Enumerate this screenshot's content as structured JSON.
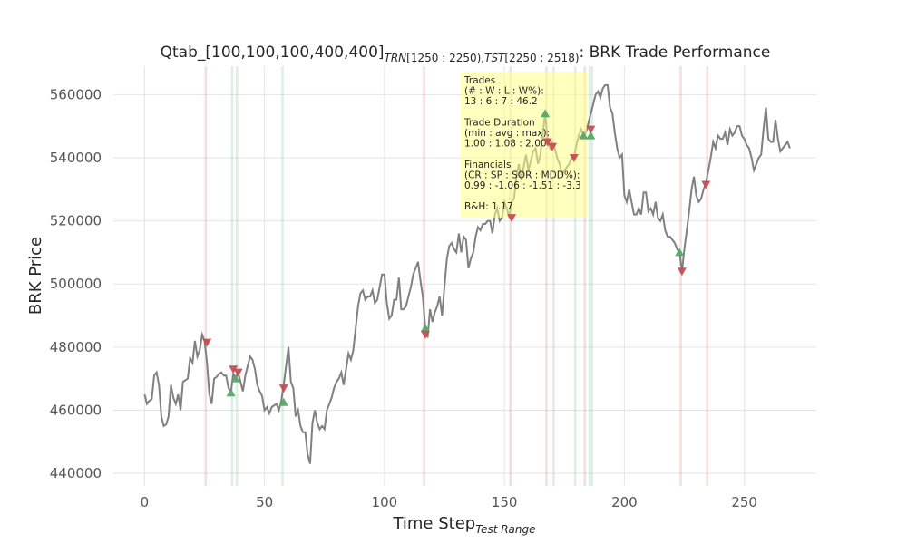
{
  "chart_data": {
    "type": "line",
    "title": {
      "prefix": "Qtab_[100,100,100,400,400]",
      "trn_label": "TRN",
      "trn_range": "[1250 : 2250),",
      "tst_label": "TST",
      "tst_range": "[2250 : 2518)",
      "suffix": ": BRK Trade Performance"
    },
    "xlabel": "Time Step",
    "xlabel_sub": "Test Range",
    "ylabel": "BRK Price",
    "xlim": [
      -13,
      280
    ],
    "ylim": [
      436000,
      569000
    ],
    "xticks": [
      0,
      50,
      100,
      150,
      200,
      250
    ],
    "yticks": [
      440000,
      460000,
      480000,
      500000,
      520000,
      540000,
      560000
    ],
    "grid": true,
    "colors": {
      "price": "#808080",
      "buy": "#55a868",
      "sell": "#c44e52",
      "buy_span": "#55a868",
      "sell_span": "#c44e52",
      "annotation_bg": "#ffff88",
      "grid": "#e5e5e5"
    },
    "price_keypoints": [
      [
        0,
        465000
      ],
      [
        1,
        462000
      ],
      [
        2,
        463000
      ],
      [
        3,
        463500
      ],
      [
        4,
        471000
      ],
      [
        5,
        472000
      ],
      [
        6,
        468000
      ],
      [
        7,
        458000
      ],
      [
        8,
        455000
      ],
      [
        9,
        455500
      ],
      [
        10,
        458000
      ],
      [
        11,
        468000
      ],
      [
        12,
        464000
      ],
      [
        13,
        462000
      ],
      [
        14,
        465000
      ],
      [
        15,
        460000
      ],
      [
        16,
        469000
      ],
      [
        17,
        469500
      ],
      [
        18,
        470000
      ],
      [
        19,
        476500
      ],
      [
        20,
        475000
      ],
      [
        21,
        482000
      ],
      [
        22,
        477000
      ],
      [
        23,
        479000
      ],
      [
        24,
        484000
      ],
      [
        25,
        482000
      ],
      [
        26,
        475000
      ],
      [
        27,
        465000
      ],
      [
        28,
        462000
      ],
      [
        29,
        470000
      ],
      [
        30,
        470500
      ],
      [
        31,
        471500
      ],
      [
        32,
        472000
      ],
      [
        33,
        471000
      ],
      [
        34,
        471000
      ],
      [
        35,
        467000
      ],
      [
        36,
        466000
      ],
      [
        37,
        471500
      ],
      [
        38,
        470000
      ],
      [
        39,
        472000
      ],
      [
        40,
        469000
      ],
      [
        41,
        466000
      ],
      [
        42,
        471000
      ],
      [
        43,
        474000
      ],
      [
        44,
        477000
      ],
      [
        45,
        476000
      ],
      [
        46,
        473000
      ],
      [
        47,
        468000
      ],
      [
        48,
        466000
      ],
      [
        49,
        464500
      ],
      [
        50,
        460000
      ],
      [
        51,
        461000
      ],
      [
        52,
        459000
      ],
      [
        53,
        461000
      ],
      [
        54,
        461500
      ],
      [
        55,
        462000
      ],
      [
        56,
        460000
      ],
      [
        57,
        463000
      ],
      [
        58,
        468000
      ],
      [
        59,
        474000
      ],
      [
        60,
        480000
      ],
      [
        61,
        469000
      ],
      [
        62,
        467000
      ],
      [
        63,
        458000
      ],
      [
        64,
        460000
      ],
      [
        65,
        455000
      ],
      [
        66,
        453000
      ],
      [
        67,
        453000
      ],
      [
        68,
        446000
      ],
      [
        69,
        443000
      ],
      [
        70,
        456000
      ],
      [
        71,
        460000
      ],
      [
        72,
        456000
      ],
      [
        73,
        454000
      ],
      [
        74,
        455000
      ],
      [
        75,
        454000
      ],
      [
        76,
        460000
      ],
      [
        77,
        462000
      ],
      [
        78,
        464000
      ],
      [
        79,
        467000
      ],
      [
        80,
        469000
      ],
      [
        81,
        470000
      ],
      [
        82,
        472000
      ],
      [
        83,
        468000
      ],
      [
        84,
        473000
      ],
      [
        85,
        478000
      ],
      [
        86,
        476000
      ],
      [
        87,
        479000
      ],
      [
        88,
        486000
      ],
      [
        89,
        493000
      ],
      [
        90,
        497000
      ],
      [
        91,
        498000
      ],
      [
        92,
        495000
      ],
      [
        93,
        496000
      ],
      [
        94,
        496000
      ],
      [
        95,
        498000
      ],
      [
        96,
        494000
      ],
      [
        97,
        495000
      ],
      [
        98,
        499000
      ],
      [
        99,
        503000
      ],
      [
        100,
        503000
      ],
      [
        101,
        494000
      ],
      [
        102,
        489000
      ],
      [
        103,
        490000
      ],
      [
        104,
        495000
      ],
      [
        105,
        495000
      ],
      [
        106,
        502000
      ],
      [
        107,
        492000
      ],
      [
        108,
        492000
      ],
      [
        109,
        493000
      ],
      [
        110,
        496000
      ],
      [
        111,
        499000
      ],
      [
        112,
        503000
      ],
      [
        113,
        505000
      ],
      [
        114,
        507000
      ],
      [
        115,
        501000
      ],
      [
        116,
        496000
      ],
      [
        117,
        486000
      ],
      [
        118,
        483000
      ],
      [
        119,
        492000
      ],
      [
        120,
        488000
      ],
      [
        121,
        491000
      ],
      [
        122,
        493000
      ],
      [
        123,
        496000
      ],
      [
        124,
        490000
      ],
      [
        125,
        499000
      ],
      [
        126,
        508000
      ],
      [
        127,
        512000
      ],
      [
        128,
        513000
      ],
      [
        129,
        511000
      ],
      [
        130,
        510000
      ],
      [
        131,
        516000
      ],
      [
        132,
        510000
      ],
      [
        133,
        515000
      ],
      [
        134,
        514000
      ],
      [
        135,
        505000
      ],
      [
        136,
        508000
      ],
      [
        137,
        510000
      ],
      [
        138,
        515000
      ],
      [
        139,
        518000
      ],
      [
        140,
        517000
      ],
      [
        141,
        519000
      ],
      [
        142,
        519000
      ],
      [
        143,
        520000
      ],
      [
        144,
        520000
      ],
      [
        145,
        516000
      ],
      [
        146,
        522000
      ],
      [
        147,
        524000
      ],
      [
        148,
        520000
      ],
      [
        149,
        521000
      ],
      [
        150,
        526000
      ],
      [
        151,
        524000
      ],
      [
        152,
        521000
      ],
      [
        153,
        526000
      ],
      [
        154,
        527000
      ],
      [
        155,
        534000
      ],
      [
        156,
        538000
      ],
      [
        157,
        533000
      ],
      [
        158,
        537000
      ],
      [
        159,
        541000
      ],
      [
        160,
        536000
      ],
      [
        161,
        539000
      ],
      [
        162,
        542000
      ],
      [
        163,
        543000
      ],
      [
        164,
        538000
      ],
      [
        165,
        541000
      ],
      [
        166,
        548000
      ],
      [
        167,
        554000
      ],
      [
        168,
        545000
      ],
      [
        169,
        543000
      ],
      [
        170,
        545000
      ],
      [
        171,
        543000
      ],
      [
        172,
        540000
      ],
      [
        173,
        538000
      ],
      [
        174,
        535000
      ],
      [
        175,
        536000
      ],
      [
        176,
        537000
      ],
      [
        177,
        538000
      ],
      [
        178,
        540000
      ],
      [
        179,
        540000
      ],
      [
        180,
        544000
      ],
      [
        181,
        547000
      ],
      [
        182,
        549000
      ],
      [
        183,
        547000
      ],
      [
        184,
        548000
      ],
      [
        185,
        551000
      ],
      [
        186,
        554000
      ],
      [
        187,
        557000
      ],
      [
        188,
        560000
      ],
      [
        189,
        561000
      ],
      [
        190,
        559000
      ],
      [
        191,
        562000
      ],
      [
        192,
        563000
      ],
      [
        193,
        563000
      ],
      [
        194,
        556000
      ],
      [
        195,
        554000
      ],
      [
        196,
        548000
      ],
      [
        197,
        543000
      ],
      [
        198,
        540000
      ],
      [
        199,
        541000
      ],
      [
        200,
        528000
      ],
      [
        201,
        526000
      ],
      [
        202,
        530000
      ],
      [
        203,
        526000
      ],
      [
        204,
        522000
      ],
      [
        205,
        522000
      ],
      [
        206,
        524000
      ],
      [
        207,
        522000
      ],
      [
        208,
        529000
      ],
      [
        209,
        529000
      ],
      [
        210,
        523000
      ],
      [
        211,
        524000
      ],
      [
        212,
        522000
      ],
      [
        213,
        526000
      ],
      [
        214,
        521000
      ],
      [
        215,
        520000
      ],
      [
        216,
        522000
      ],
      [
        217,
        517000
      ],
      [
        218,
        515000
      ],
      [
        219,
        515000
      ],
      [
        220,
        514000
      ],
      [
        221,
        513000
      ],
      [
        222,
        511000
      ],
      [
        223,
        510000
      ],
      [
        224,
        504000
      ],
      [
        225,
        511000
      ],
      [
        226,
        517000
      ],
      [
        227,
        523000
      ],
      [
        228,
        530000
      ],
      [
        229,
        534000
      ],
      [
        230,
        528000
      ],
      [
        231,
        526000
      ],
      [
        232,
        527000
      ],
      [
        233,
        530000
      ],
      [
        234,
        532000
      ],
      [
        235,
        536000
      ],
      [
        236,
        540000
      ],
      [
        237,
        545000
      ],
      [
        238,
        543000
      ],
      [
        239,
        547000
      ],
      [
        240,
        546000
      ],
      [
        241,
        546000
      ],
      [
        242,
        548000
      ],
      [
        243,
        544000
      ],
      [
        244,
        549000
      ],
      [
        245,
        547000
      ],
      [
        246,
        548000
      ],
      [
        247,
        550000
      ],
      [
        248,
        550000
      ],
      [
        249,
        547000
      ],
      [
        250,
        546000
      ],
      [
        251,
        544000
      ],
      [
        252,
        543000
      ],
      [
        253,
        540000
      ],
      [
        254,
        536000
      ],
      [
        255,
        538000
      ],
      [
        256,
        540000
      ],
      [
        257,
        541000
      ],
      [
        258,
        549000
      ],
      [
        259,
        556000
      ],
      [
        260,
        546000
      ],
      [
        261,
        545000
      ],
      [
        262,
        545000
      ],
      [
        263,
        552000
      ],
      [
        264,
        546000
      ],
      [
        265,
        542000
      ],
      [
        266,
        543000
      ],
      [
        267,
        544000
      ],
      [
        268,
        545000
      ],
      [
        269,
        543000
      ]
    ],
    "buy_markers": [
      [
        36,
        465500
      ],
      [
        38,
        470000
      ],
      [
        58,
        462500
      ],
      [
        117,
        486000
      ],
      [
        167,
        554000
      ],
      [
        183,
        547000
      ],
      [
        186,
        547000
      ],
      [
        223,
        510000
      ]
    ],
    "sell_markers": [
      [
        26,
        481500
      ],
      [
        37,
        473000
      ],
      [
        39,
        472000
      ],
      [
        58,
        467000
      ],
      [
        117,
        484000
      ],
      [
        153,
        521000
      ],
      [
        168,
        545000
      ],
      [
        170,
        543500
      ],
      [
        179,
        540000
      ],
      [
        186,
        549000
      ],
      [
        224,
        504000
      ],
      [
        234,
        531500
      ]
    ],
    "buy_spans": [
      [
        36,
        37
      ],
      [
        38,
        39
      ],
      [
        57,
        58
      ],
      [
        170,
        171
      ],
      [
        179,
        180
      ],
      [
        185,
        187
      ]
    ],
    "sell_spans": [
      [
        25,
        26
      ],
      [
        116,
        117
      ],
      [
        152,
        153
      ],
      [
        167,
        168
      ],
      [
        183,
        184
      ],
      [
        223,
        224
      ],
      [
        234,
        235
      ]
    ],
    "annotation": {
      "lines": [
        "Trades",
        "(# : W : L : W%):",
        "13 : 6 : 7 : 46.2",
        "",
        "Trade Duration",
        "(min : avg : max):",
        "1.00 : 1.08 : 2.00",
        "",
        "Financials",
        "(CR : SP : SOR : MDD%):",
        "0.99 : -1.06 : -1.51 : -3.3",
        "",
        "B&H: 1.17"
      ]
    }
  }
}
